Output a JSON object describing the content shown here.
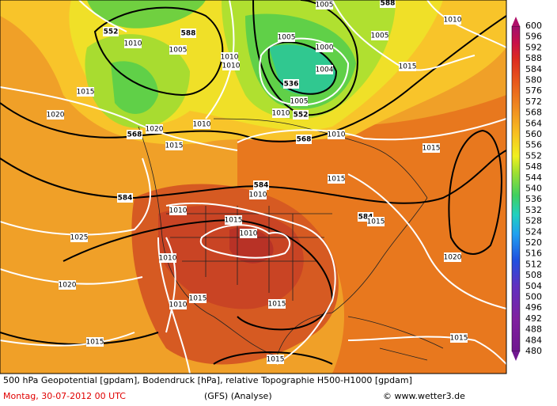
{
  "map": {
    "contour_labels": [
      "588",
      "552",
      "588",
      "1010",
      "1005",
      "1010",
      "1010",
      "1005",
      "1000",
      "1005",
      "1005",
      "1010",
      "1015",
      "1004",
      "536",
      "1005",
      "1010",
      "552",
      "1015",
      "1020",
      "1020",
      "568",
      "1010",
      "1015",
      "568",
      "1010",
      "1015",
      "584",
      "1010",
      "584",
      "1015",
      "1010",
      "1015",
      "584",
      "1015",
      "1010",
      "1025",
      "1010",
      "1020",
      "1020",
      "1010",
      "1015",
      "1015",
      "1015",
      "1015",
      "1015"
    ],
    "colorbar": {
      "labels": [
        "600",
        "596",
        "592",
        "588",
        "584",
        "580",
        "576",
        "572",
        "568",
        "564",
        "560",
        "556",
        "552",
        "548",
        "544",
        "540",
        "536",
        "532",
        "528",
        "524",
        "520",
        "516",
        "512",
        "508",
        "504",
        "500",
        "496",
        "492",
        "488",
        "484",
        "480"
      ]
    }
  },
  "caption": {
    "line1": "500 hPa Geopotential [gpdam], Bodendruck [hPa], relative Topographie H500-H1000 [gpdam]",
    "date": "Montag, 30-07-2012  00 UTC",
    "model": "(GFS)   (Analyse)",
    "credit": "© www.wetter3.de"
  }
}
